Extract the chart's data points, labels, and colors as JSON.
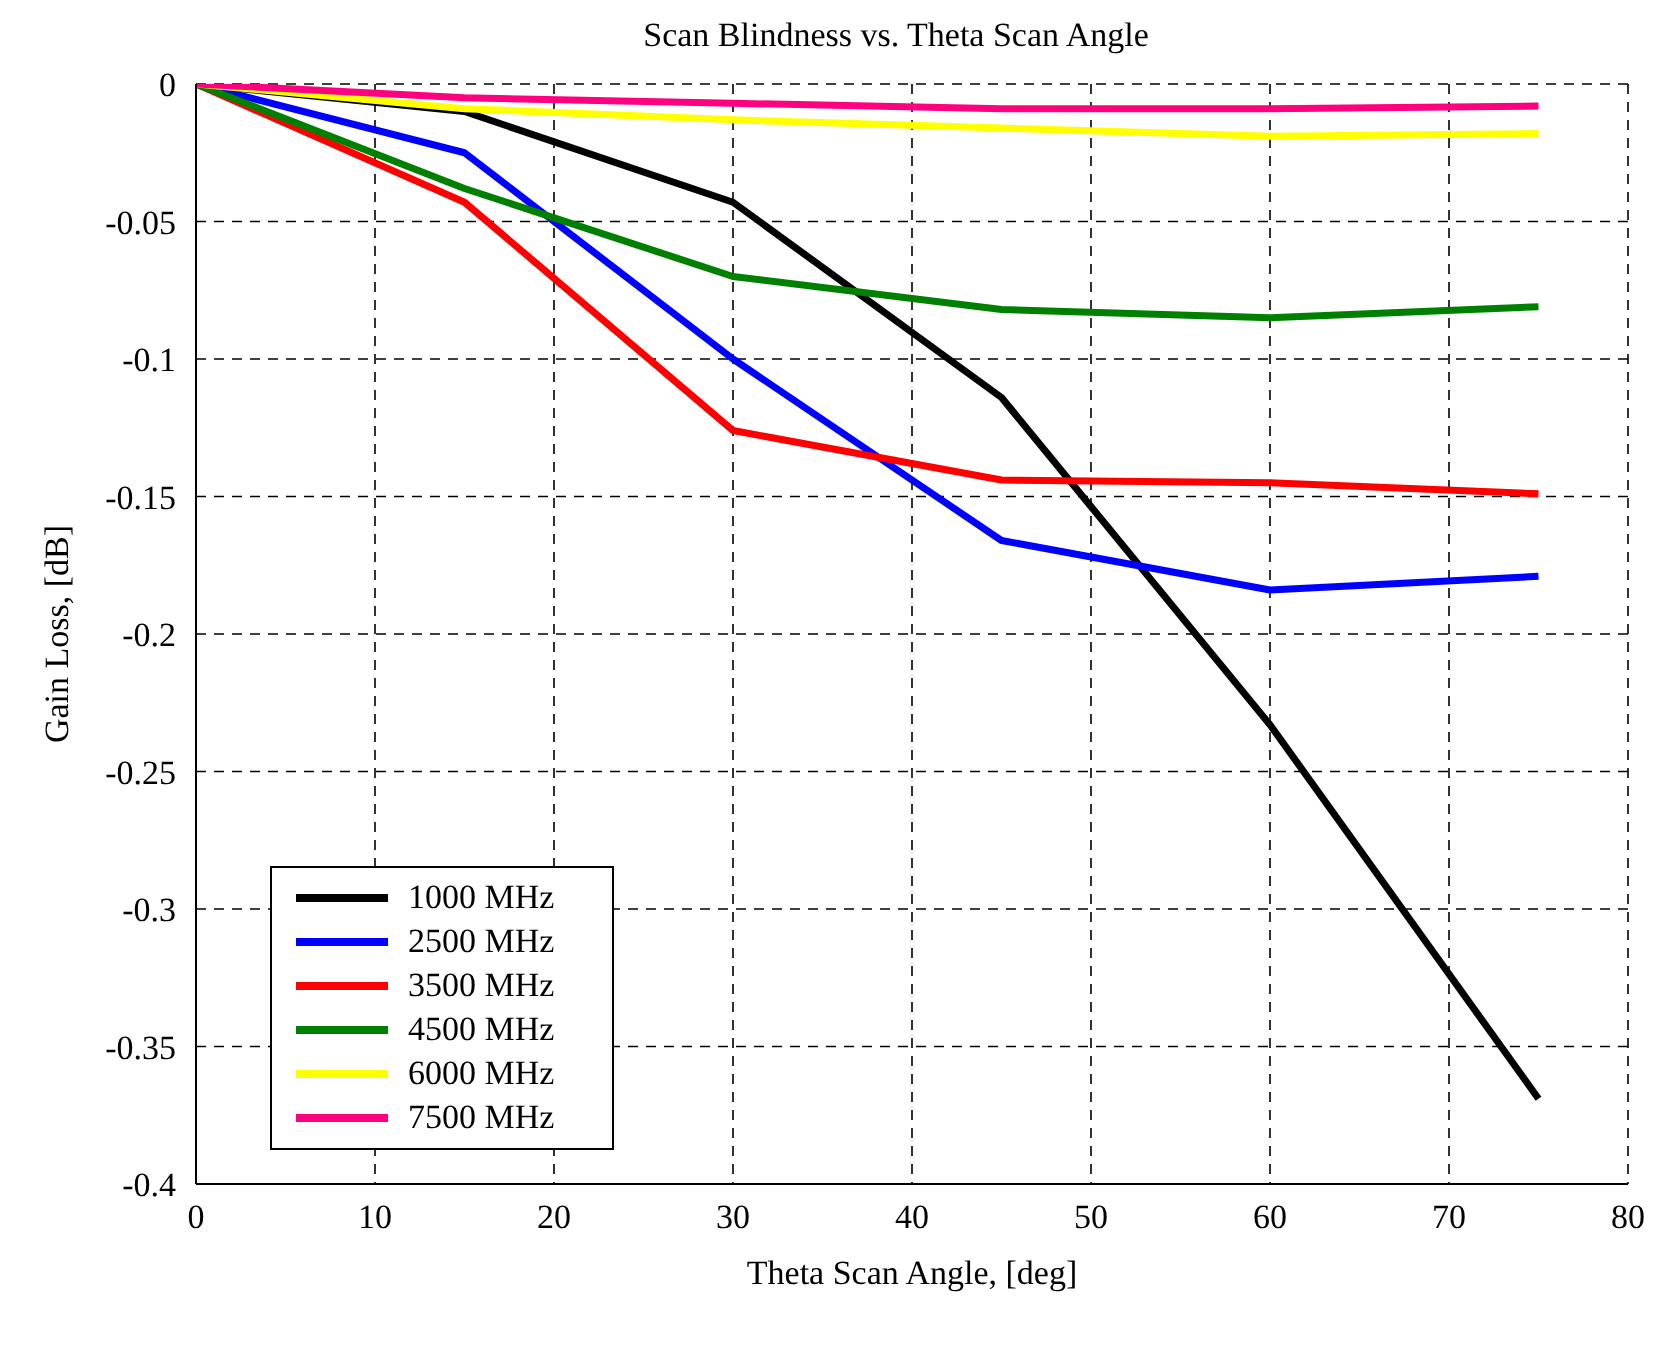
{
  "chart_data": {
    "type": "line",
    "title": "Scan Blindness vs. Theta Scan Angle",
    "xlabel": "Theta Scan Angle, [deg]",
    "ylabel": "Gain Loss, [dB]",
    "x": [
      0,
      15,
      30,
      45,
      60,
      75
    ],
    "series": [
      {
        "name": "1000 MHz",
        "color": "#000000",
        "values": [
          0,
          -0.01,
          -0.043,
          -0.114,
          -0.233,
          -0.369
        ]
      },
      {
        "name": "2500 MHz",
        "color": "#0000ff",
        "values": [
          0,
          -0.025,
          -0.1,
          -0.166,
          -0.184,
          -0.179
        ]
      },
      {
        "name": "3500 MHz",
        "color": "#ff0000",
        "values": [
          0,
          -0.043,
          -0.126,
          -0.144,
          -0.145,
          -0.149
        ]
      },
      {
        "name": "4500 MHz",
        "color": "#008000",
        "values": [
          0,
          -0.038,
          -0.07,
          -0.082,
          -0.085,
          -0.081
        ]
      },
      {
        "name": "6000 MHz",
        "color": "#ffff00",
        "values": [
          0,
          -0.009,
          -0.013,
          -0.016,
          -0.019,
          -0.018
        ]
      },
      {
        "name": "7500 MHz",
        "color": "#ff0080",
        "values": [
          0,
          -0.005,
          -0.007,
          -0.009,
          -0.009,
          -0.008
        ]
      }
    ],
    "xlim": [
      0,
      80
    ],
    "xticks": [
      0,
      10,
      20,
      30,
      40,
      50,
      60,
      70,
      80
    ],
    "ylim": [
      -0.4,
      0
    ],
    "yticks": [
      -0.4,
      -0.35,
      -0.3,
      -0.25,
      -0.2,
      -0.15,
      -0.1,
      -0.05,
      0
    ],
    "grid": true,
    "legend": "bottom left",
    "marker": "none",
    "line_style": "solid"
  }
}
